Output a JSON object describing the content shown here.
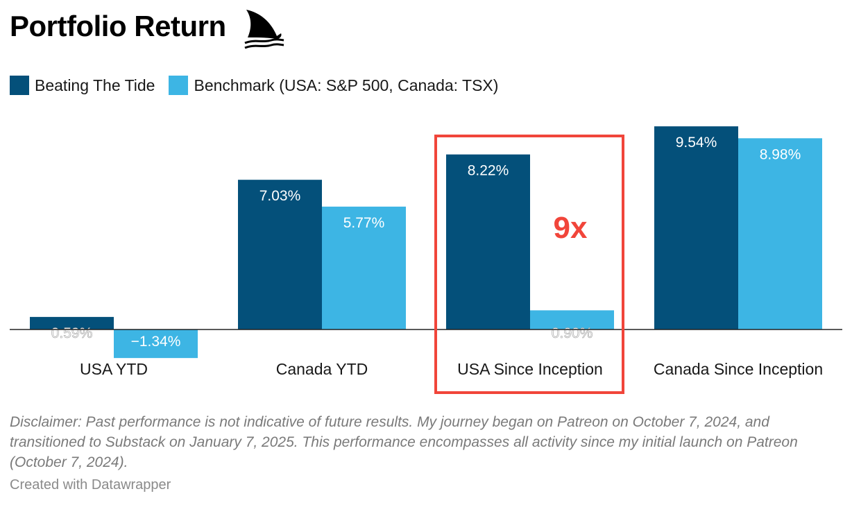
{
  "header": {
    "title": "Portfolio Return"
  },
  "colors": {
    "series_1": "#04507a",
    "series_2": "#3db5e4",
    "highlight_box": "#f1453a",
    "annotation": "#f1453a",
    "zero_line": "#222222"
  },
  "chart_data": {
    "type": "bar",
    "title": "Portfolio Return",
    "categories": [
      "USA YTD",
      "Canada YTD",
      "USA Since Inception",
      "Canada Since Inception"
    ],
    "series": [
      {
        "name": "Beating The Tide",
        "values": [
          0.59,
          7.03,
          8.22,
          9.54
        ],
        "labels": [
          "0.59%",
          "7.03%",
          "8.22%",
          "9.54%"
        ]
      },
      {
        "name": "Benchmark (USA: S&P 500, Canada: TSX)",
        "values": [
          -1.34,
          5.77,
          0.9,
          8.98
        ],
        "labels": [
          "−1.34%",
          "5.77%",
          "0.90%",
          "8.98%"
        ]
      }
    ],
    "ylim": [
      -1.34,
      9.54
    ],
    "grid": false,
    "legend": "top-left",
    "annotation": {
      "text": "9x",
      "category": "USA Since Inception"
    }
  },
  "footer": {
    "disclaimer": "Disclaimer: Past performance is not indicative of future results. My journey began on Patreon on October 7, 2024, and transitioned to Substack on January 7, 2025. This performance encompasses all activity since my initial launch on Patreon (October 7, 2024).",
    "credit": "Created with Datawrapper"
  }
}
